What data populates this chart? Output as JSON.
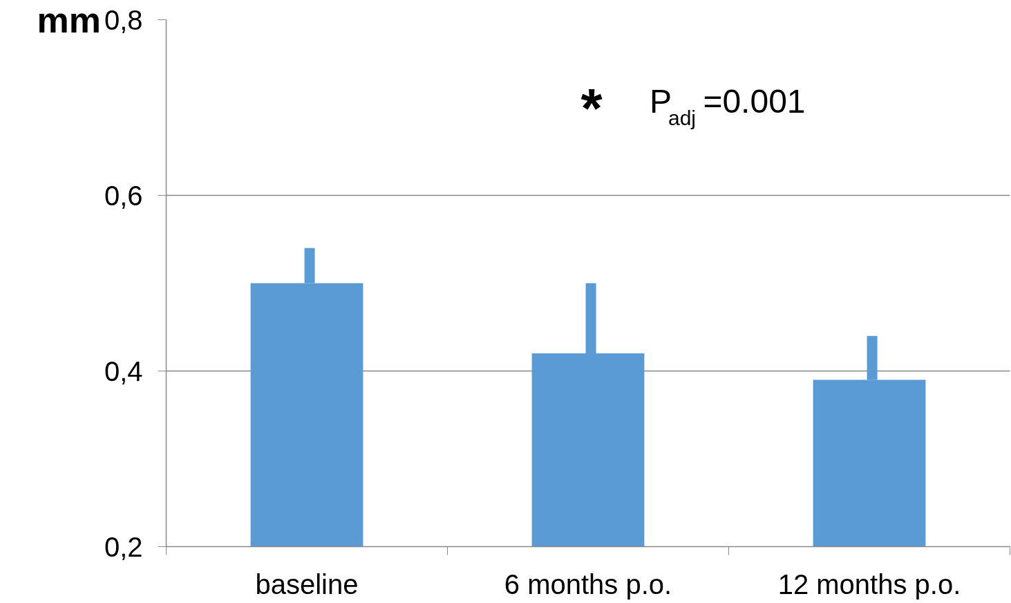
{
  "chart_data": {
    "type": "bar",
    "ylabel": "mm",
    "categories": [
      "baseline",
      "6 months p.o.",
      "12 months p.o."
    ],
    "values": [
      0.5,
      0.42,
      0.39
    ],
    "color": "#5b9bd5",
    "errors": [
      [
        0.5,
        0.54
      ],
      [
        0.42,
        0.5
      ],
      [
        0.39,
        0.44
      ]
    ],
    "ylim": [
      0.2,
      0.8
    ],
    "yticks": [
      {
        "value": 0.2,
        "label": "0,2"
      },
      {
        "value": 0.4,
        "label": "0,4"
      },
      {
        "value": 0.6,
        "label": "0,6"
      },
      {
        "value": 0.8,
        "label": "0,8"
      }
    ],
    "grid": "y",
    "annotations": [
      "*   P$_{adj}$=0.001"
    ]
  }
}
